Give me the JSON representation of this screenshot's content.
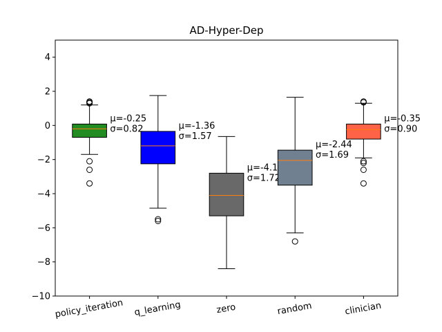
{
  "chart_data": {
    "type": "boxplot",
    "title": "AD-Hyper-Dep",
    "xlabel": "",
    "ylabel": "",
    "ylim": [
      -10,
      5
    ],
    "yticks": [
      -10,
      -8,
      -6,
      -4,
      -2,
      0,
      2,
      4
    ],
    "ytick_labels": [
      "−10",
      "−8",
      "−6",
      "−4",
      "−2",
      "0",
      "2",
      "4"
    ],
    "grid": false,
    "categories": [
      "policy_iteration",
      "q_learning",
      "zero",
      "random",
      "clinician"
    ],
    "boxes": [
      {
        "category": "policy_iteration",
        "q1": -0.7,
        "median": -0.2,
        "q3": 0.08,
        "whisker_low": -1.7,
        "whisker_high": 1.2,
        "outliers": [
          1.4,
          1.35,
          1.3,
          -2.1,
          -2.6,
          -3.4
        ],
        "mean_label": "μ=-0.25",
        "std_label": "σ=0.82",
        "color": "#228B22"
      },
      {
        "category": "q_learning",
        "q1": -2.25,
        "median": -1.2,
        "q3": -0.35,
        "whisker_low": -4.85,
        "whisker_high": 1.75,
        "outliers": [
          -5.5,
          -5.6
        ],
        "mean_label": "μ=-1.36",
        "std_label": "σ=1.57",
        "color": "#0000FF"
      },
      {
        "category": "zero",
        "q1": -5.3,
        "median": -4.1,
        "q3": -2.8,
        "whisker_low": -8.4,
        "whisker_high": -0.65,
        "outliers": [],
        "mean_label": "μ=-4.11",
        "std_label": "σ=1.72",
        "color": "#696969"
      },
      {
        "category": "random",
        "q1": -3.5,
        "median": -2.05,
        "q3": -1.45,
        "whisker_low": -6.3,
        "whisker_high": 1.65,
        "outliers": [
          -6.8
        ],
        "mean_label": "μ=-2.44",
        "std_label": "σ=1.69",
        "color": "#708090"
      },
      {
        "category": "clinician",
        "q1": -0.8,
        "median": -0.25,
        "q3": 0.08,
        "whisker_low": -1.9,
        "whisker_high": 1.3,
        "outliers": [
          1.4,
          1.35,
          -2.1,
          -2.2,
          -2.6,
          -3.4
        ],
        "mean_label": "μ=-0.35",
        "std_label": "σ=0.90",
        "color": "#FF6347"
      }
    ],
    "median_color": "#FF7F0E"
  }
}
